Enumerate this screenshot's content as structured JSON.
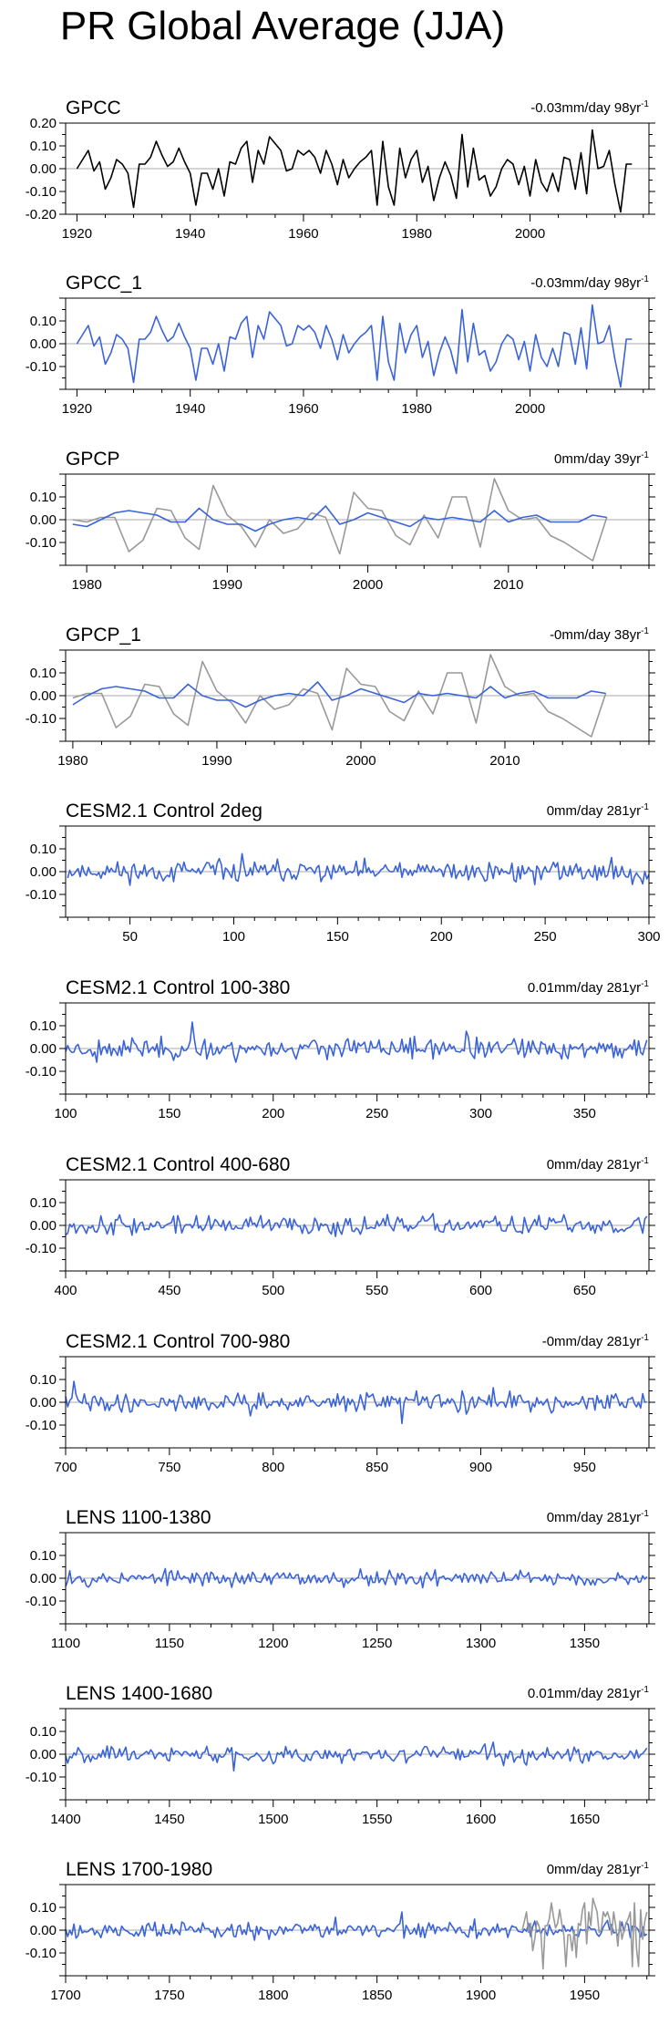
{
  "page": {
    "title": "PR Global Average (JJA)"
  },
  "colors": {
    "obs": "#000000",
    "model": "#3a63d8",
    "overlay": "#999999",
    "zero_line": "#aaaaaa"
  },
  "chart_data": [
    {
      "type": "line",
      "title": "GPCC",
      "trend_label": "-0.03mm/day 98yr-1",
      "trend_value": "-0.03mm/day 98yr",
      "trend_exp": "-1",
      "xlim": [
        1918,
        2021
      ],
      "ylim": [
        -0.2,
        0.2
      ],
      "yticks": [
        0.2,
        0.1,
        0.0,
        -0.1,
        -0.2
      ],
      "ytick_labels": [
        "0.20",
        "0.10",
        "0.00",
        "-0.10",
        "-0.20"
      ],
      "xticks": [
        1920,
        1940,
        1960,
        1980,
        2000
      ],
      "xtick_labels": [
        "1920",
        "1940",
        "1960",
        "1980",
        "2000"
      ],
      "series": [
        {
          "name": "GPCC",
          "color": "#000000",
          "x_start": 1920,
          "x_step": 1,
          "values": [
            0.0,
            0.04,
            0.08,
            -0.01,
            0.03,
            -0.09,
            -0.04,
            0.04,
            0.02,
            -0.02,
            -0.17,
            0.02,
            0.02,
            0.05,
            0.12,
            0.06,
            0.01,
            0.03,
            0.09,
            0.03,
            -0.02,
            -0.16,
            -0.02,
            -0.02,
            -0.09,
            0.0,
            -0.12,
            0.03,
            0.02,
            0.09,
            0.12,
            -0.06,
            0.08,
            0.02,
            0.14,
            0.11,
            0.08,
            -0.01,
            0.0,
            0.08,
            0.06,
            0.08,
            0.05,
            -0.02,
            0.08,
            0.02,
            -0.07,
            0.04,
            -0.04,
            0.0,
            0.03,
            0.05,
            0.08,
            -0.16,
            0.12,
            -0.08,
            -0.16,
            0.09,
            -0.04,
            0.04,
            0.08,
            -0.06,
            0.01,
            -0.14,
            -0.04,
            0.03,
            -0.03,
            -0.13,
            0.15,
            -0.08,
            0.09,
            -0.05,
            -0.03,
            -0.12,
            -0.08,
            0.0,
            0.04,
            0.02,
            -0.07,
            0.01,
            -0.12,
            0.04,
            -0.06,
            -0.1,
            -0.02,
            -0.1,
            0.05,
            0.04,
            -0.09,
            0.07,
            -0.11,
            0.17,
            0.0,
            0.01,
            0.08,
            -0.07,
            -0.19,
            0.02,
            0.02
          ]
        }
      ]
    },
    {
      "type": "line",
      "title": "GPCC_1",
      "trend_label": "-0.03mm/day 98yr-1",
      "trend_value": "-0.03mm/day 98yr",
      "trend_exp": "-1",
      "xlim": [
        1918,
        2021
      ],
      "ylim": [
        -0.2,
        0.2
      ],
      "yticks": [
        0.1,
        0.0,
        -0.1
      ],
      "ytick_labels": [
        "0.10",
        "0.00",
        "-0.10"
      ],
      "xticks": [
        1920,
        1940,
        1960,
        1980,
        2000
      ],
      "xtick_labels": [
        "1920",
        "1940",
        "1960",
        "1980",
        "2000"
      ],
      "series": [
        {
          "name": "GPCC_1",
          "color": "#3a63d8",
          "x_start": 1920,
          "x_step": 1,
          "values": [
            0.0,
            0.04,
            0.08,
            -0.01,
            0.03,
            -0.09,
            -0.04,
            0.04,
            0.02,
            -0.02,
            -0.17,
            0.02,
            0.02,
            0.05,
            0.12,
            0.06,
            0.01,
            0.03,
            0.09,
            0.03,
            -0.02,
            -0.16,
            -0.02,
            -0.02,
            -0.09,
            0.0,
            -0.12,
            0.03,
            0.02,
            0.09,
            0.12,
            -0.06,
            0.08,
            0.02,
            0.14,
            0.11,
            0.08,
            -0.01,
            0.0,
            0.08,
            0.06,
            0.08,
            0.05,
            -0.02,
            0.08,
            0.02,
            -0.07,
            0.04,
            -0.04,
            0.0,
            0.03,
            0.05,
            0.08,
            -0.16,
            0.12,
            -0.08,
            -0.16,
            0.09,
            -0.04,
            0.04,
            0.08,
            -0.06,
            0.01,
            -0.14,
            -0.04,
            0.03,
            -0.03,
            -0.13,
            0.15,
            -0.08,
            0.09,
            -0.05,
            -0.03,
            -0.12,
            -0.08,
            0.0,
            0.04,
            0.02,
            -0.07,
            0.01,
            -0.12,
            0.04,
            -0.06,
            -0.1,
            -0.02,
            -0.1,
            0.05,
            0.04,
            -0.09,
            0.07,
            -0.11,
            0.17,
            0.0,
            0.01,
            0.08,
            -0.07,
            -0.19,
            0.02,
            0.02
          ]
        }
      ]
    },
    {
      "type": "line",
      "title": "GPCP",
      "trend_label": "0mm/day 39yr-1",
      "trend_value": "0mm/day 39yr",
      "trend_exp": "-1",
      "xlim": [
        1978.5,
        2020
      ],
      "ylim": [
        -0.2,
        0.2
      ],
      "yticks": [
        0.1,
        0.0,
        -0.1
      ],
      "ytick_labels": [
        "0.10",
        "0.00",
        "-0.10"
      ],
      "xticks": [
        1980,
        1990,
        2000,
        2010
      ],
      "xtick_labels": [
        "1980",
        "1990",
        "2000",
        "2010"
      ],
      "series": [
        {
          "name": "GPCC overlay",
          "color": "#999999",
          "x_start": 1979,
          "x_step": 1,
          "values": [
            0.0,
            -0.01,
            0.01,
            0.01,
            -0.14,
            -0.09,
            0.05,
            0.04,
            -0.08,
            -0.13,
            0.15,
            0.02,
            -0.03,
            -0.12,
            0.0,
            -0.06,
            -0.04,
            0.03,
            0.01,
            -0.15,
            0.12,
            0.05,
            0.04,
            -0.07,
            -0.11,
            0.02,
            -0.08,
            0.1,
            0.1,
            -0.12,
            0.18,
            0.04,
            0.0,
            0.01,
            -0.07,
            -0.1,
            -0.14,
            -0.18,
            0.01
          ]
        },
        {
          "name": "GPCP",
          "color": "#3a63d8",
          "x_start": 1979,
          "x_step": 1,
          "values": [
            -0.02,
            -0.03,
            0.0,
            0.03,
            0.04,
            0.03,
            0.02,
            -0.01,
            -0.01,
            0.05,
            0.0,
            -0.02,
            -0.02,
            -0.05,
            -0.02,
            0.0,
            0.01,
            0.0,
            0.06,
            -0.02,
            0.0,
            0.03,
            0.01,
            -0.01,
            -0.03,
            0.01,
            0.0,
            0.01,
            0.0,
            -0.01,
            0.04,
            -0.01,
            0.01,
            0.02,
            -0.01,
            -0.01,
            -0.01,
            0.02,
            0.01
          ]
        }
      ]
    },
    {
      "type": "line",
      "title": "GPCP_1",
      "trend_label": "-0mm/day 38yr-1",
      "trend_value": "-0mm/day 38yr",
      "trend_exp": "-1",
      "xlim": [
        1979.5,
        2020
      ],
      "ylim": [
        -0.2,
        0.2
      ],
      "yticks": [
        0.1,
        0.0,
        -0.1
      ],
      "ytick_labels": [
        "0.10",
        "0.00",
        "-0.10"
      ],
      "xticks": [
        1980,
        1990,
        2000,
        2010
      ],
      "xtick_labels": [
        "1980",
        "1990",
        "2000",
        "2010"
      ],
      "series": [
        {
          "name": "GPCC overlay",
          "color": "#999999",
          "x_start": 1980,
          "x_step": 1,
          "values": [
            -0.01,
            0.01,
            0.01,
            -0.14,
            -0.09,
            0.05,
            0.04,
            -0.08,
            -0.13,
            0.15,
            0.02,
            -0.03,
            -0.12,
            0.0,
            -0.06,
            -0.04,
            0.03,
            0.01,
            -0.15,
            0.12,
            0.05,
            0.04,
            -0.07,
            -0.11,
            0.02,
            -0.08,
            0.1,
            0.1,
            -0.12,
            0.18,
            0.04,
            0.0,
            0.01,
            -0.07,
            -0.1,
            -0.14,
            -0.18,
            0.01
          ]
        },
        {
          "name": "GPCP_1",
          "color": "#3a63d8",
          "x_start": 1980,
          "x_step": 1,
          "values": [
            -0.04,
            0.0,
            0.03,
            0.04,
            0.03,
            0.02,
            -0.01,
            -0.01,
            0.05,
            0.0,
            -0.02,
            -0.02,
            -0.05,
            -0.02,
            0.0,
            0.01,
            0.0,
            0.06,
            -0.02,
            0.0,
            0.03,
            0.01,
            -0.01,
            -0.03,
            0.01,
            0.0,
            0.01,
            0.0,
            -0.01,
            0.04,
            -0.01,
            0.01,
            0.02,
            -0.01,
            -0.01,
            -0.01,
            0.02,
            0.01
          ]
        }
      ]
    },
    {
      "type": "line",
      "title": "CESM2.1 Control 2deg",
      "trend_label": "0mm/day 281yr-1",
      "trend_value": "0mm/day 281yr",
      "trend_exp": "-1",
      "xlim": [
        19,
        300
      ],
      "ylim": [
        -0.2,
        0.2
      ],
      "yticks": [
        0.1,
        0.0,
        -0.1
      ],
      "ytick_labels": [
        "0.10",
        "0.00",
        "-0.10"
      ],
      "xticks": [
        50,
        100,
        150,
        200,
        250,
        300
      ],
      "xtick_labels": [
        "50",
        "100",
        "150",
        "200",
        "250",
        "300"
      ],
      "series": [
        {
          "name": "model",
          "color": "#3a63d8",
          "x_start": 20,
          "x_step": 1,
          "n": 281,
          "seed": 11,
          "amp": 0.022
        }
      ]
    },
    {
      "type": "line",
      "title": "CESM2.1 Control 100-380",
      "trend_label": "0.01mm/day 281yr-1",
      "trend_value": "0.01mm/day 281yr",
      "trend_exp": "-1",
      "xlim": [
        100,
        381
      ],
      "ylim": [
        -0.2,
        0.2
      ],
      "yticks": [
        0.1,
        0.0,
        -0.1
      ],
      "ytick_labels": [
        "0.10",
        "0.00",
        "-0.10"
      ],
      "xticks": [
        100,
        150,
        200,
        250,
        300,
        350
      ],
      "xtick_labels": [
        "100",
        "150",
        "200",
        "250",
        "300",
        "350"
      ],
      "series": [
        {
          "name": "model",
          "color": "#3a63d8",
          "x_start": 100,
          "x_step": 1,
          "n": 281,
          "seed": 23,
          "amp": 0.022
        }
      ]
    },
    {
      "type": "line",
      "title": "CESM2.1 Control 400-680",
      "trend_label": "0mm/day 281yr-1",
      "trend_value": "0mm/day 281yr",
      "trend_exp": "-1",
      "xlim": [
        400,
        681
      ],
      "ylim": [
        -0.2,
        0.2
      ],
      "yticks": [
        0.1,
        0.0,
        -0.1
      ],
      "ytick_labels": [
        "0.10",
        "0.00",
        "-0.10"
      ],
      "xticks": [
        400,
        450,
        500,
        550,
        600,
        650
      ],
      "xtick_labels": [
        "400",
        "450",
        "500",
        "550",
        "600",
        "650"
      ],
      "series": [
        {
          "name": "model",
          "color": "#3a63d8",
          "x_start": 400,
          "x_step": 1,
          "n": 281,
          "seed": 37,
          "amp": 0.02
        }
      ]
    },
    {
      "type": "line",
      "title": "CESM2.1 Control 700-980",
      "trend_label": "-0mm/day 281yr-1",
      "trend_value": "-0mm/day 281yr",
      "trend_exp": "-1",
      "xlim": [
        700,
        981
      ],
      "ylim": [
        -0.2,
        0.2
      ],
      "yticks": [
        0.1,
        0.0,
        -0.1
      ],
      "ytick_labels": [
        "0.10",
        "0.00",
        "-0.10"
      ],
      "xticks": [
        700,
        750,
        800,
        850,
        900,
        950
      ],
      "xtick_labels": [
        "700",
        "750",
        "800",
        "850",
        "900",
        "950"
      ],
      "series": [
        {
          "name": "model",
          "color": "#3a63d8",
          "x_start": 700,
          "x_step": 1,
          "n": 281,
          "seed": 41,
          "amp": 0.02
        }
      ]
    },
    {
      "type": "line",
      "title": "LENS 1100-1380",
      "trend_label": "0mm/day 281yr-1",
      "trend_value": "0mm/day 281yr",
      "trend_exp": "-1",
      "xlim": [
        1100,
        1381
      ],
      "ylim": [
        -0.2,
        0.2
      ],
      "yticks": [
        0.1,
        0.0,
        -0.1
      ],
      "ytick_labels": [
        "0.10",
        "0.00",
        "-0.10"
      ],
      "xticks": [
        1100,
        1150,
        1200,
        1250,
        1300,
        1350
      ],
      "xtick_labels": [
        "1100",
        "1150",
        "1200",
        "1250",
        "1300",
        "1350"
      ],
      "series": [
        {
          "name": "model",
          "color": "#3a63d8",
          "x_start": 1100,
          "x_step": 1,
          "n": 281,
          "seed": 53,
          "amp": 0.017
        }
      ]
    },
    {
      "type": "line",
      "title": "LENS 1400-1680",
      "trend_label": "0.01mm/day 281yr-1",
      "trend_value": "0.01mm/day 281yr",
      "trend_exp": "-1",
      "xlim": [
        1400,
        1681
      ],
      "ylim": [
        -0.2,
        0.2
      ],
      "yticks": [
        0.1,
        0.0,
        -0.1
      ],
      "ytick_labels": [
        "0.10",
        "0.00",
        "-0.10"
      ],
      "xticks": [
        1400,
        1450,
        1500,
        1550,
        1600,
        1650
      ],
      "xtick_labels": [
        "1400",
        "1450",
        "1500",
        "1550",
        "1600",
        "1650"
      ],
      "series": [
        {
          "name": "model",
          "color": "#3a63d8",
          "x_start": 1400,
          "x_step": 1,
          "n": 281,
          "seed": 67,
          "amp": 0.017
        }
      ]
    },
    {
      "type": "line",
      "title": "LENS 1700-1980",
      "trend_label": "0mm/day 281yr-1",
      "trend_value": "0mm/day 281yr",
      "trend_exp": "-1",
      "xlim": [
        1700,
        1981
      ],
      "ylim": [
        -0.2,
        0.2
      ],
      "yticks": [
        0.1,
        0.0,
        -0.1
      ],
      "ytick_labels": [
        "0.10",
        "0.00",
        "-0.10"
      ],
      "xticks": [
        1700,
        1750,
        1800,
        1850,
        1900,
        1950
      ],
      "xtick_labels": [
        "1700",
        "1750",
        "1800",
        "1850",
        "1900",
        "1950"
      ],
      "series": [
        {
          "name": "model",
          "color": "#3a63d8",
          "x_start": 1700,
          "x_step": 1,
          "n": 281,
          "seed": 79,
          "amp": 0.017
        },
        {
          "name": "GPCC overlay",
          "color": "#999999",
          "x_start": 1920,
          "x_step": 1,
          "values": [
            0.0,
            0.04,
            0.08,
            -0.01,
            0.03,
            -0.09,
            -0.04,
            0.04,
            0.02,
            -0.02,
            -0.17,
            0.02,
            0.02,
            0.05,
            0.12,
            0.06,
            0.01,
            0.03,
            0.09,
            0.03,
            -0.02,
            -0.16,
            -0.02,
            -0.02,
            -0.09,
            0.0,
            -0.12,
            0.03,
            0.02,
            0.09,
            0.12,
            -0.06,
            0.08,
            0.02,
            0.14,
            0.11,
            0.08,
            -0.01,
            0.0,
            0.08,
            0.06,
            0.08,
            0.05,
            -0.02,
            0.08,
            0.02,
            -0.07,
            0.04,
            -0.04,
            0.0,
            0.03,
            0.05,
            0.08,
            -0.16,
            0.12,
            -0.08,
            -0.16,
            0.09,
            -0.04,
            0.04,
            0.08
          ]
        }
      ]
    }
  ]
}
